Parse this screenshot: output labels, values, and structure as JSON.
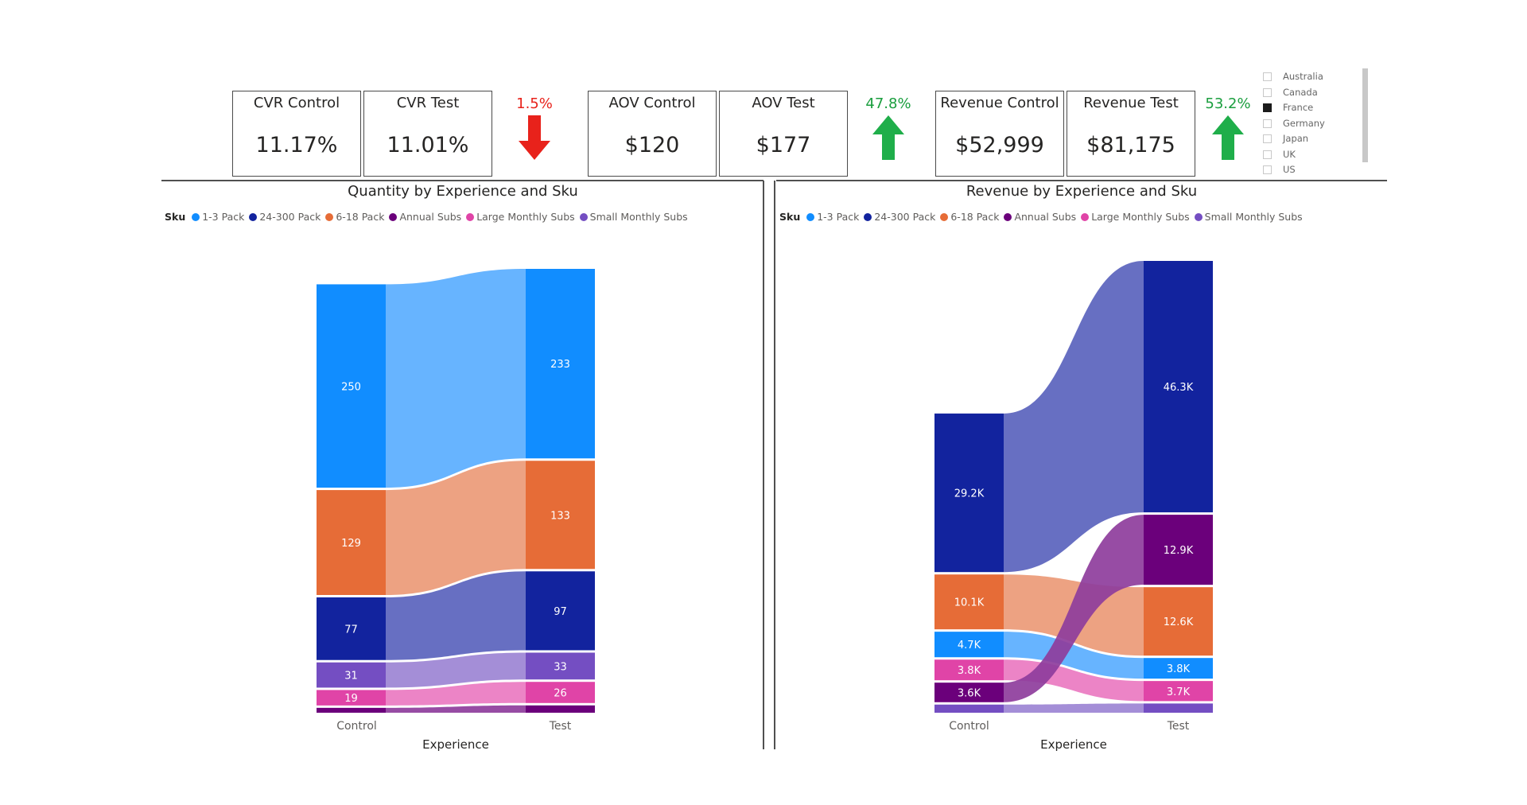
{
  "kpis": {
    "cvr_control": {
      "label": "CVR Control",
      "value": "11.17%"
    },
    "cvr_test": {
      "label": "CVR Test",
      "value": "11.01%"
    },
    "cvr_change": {
      "value": "1.5%",
      "direction": "down",
      "color": "#e8221b"
    },
    "aov_control": {
      "label": "AOV Control",
      "value": "$120"
    },
    "aov_test": {
      "label": "AOV Test",
      "value": "$177"
    },
    "aov_change": {
      "value": "47.8%",
      "direction": "up",
      "color": "#1a9e3e"
    },
    "revenue_control": {
      "label": "Revenue Control",
      "value": "$52,999"
    },
    "revenue_test": {
      "label": "Revenue Test",
      "value": "$81,175"
    },
    "revenue_change": {
      "value": "53.2%",
      "direction": "up",
      "color": "#1a9e3e"
    }
  },
  "slicer": {
    "options": [
      {
        "label": "Australia",
        "checked": false
      },
      {
        "label": "Canada",
        "checked": false
      },
      {
        "label": "France",
        "checked": true
      },
      {
        "label": "Germany",
        "checked": false
      },
      {
        "label": "Japan",
        "checked": false
      },
      {
        "label": "UK",
        "checked": false
      },
      {
        "label": "US",
        "checked": false
      }
    ]
  },
  "legend": {
    "header": "Sku",
    "items": [
      {
        "label": "1-3 Pack",
        "color": "#118dff"
      },
      {
        "label": "24-300 Pack",
        "color": "#12239e"
      },
      {
        "label": "6-18 Pack",
        "color": "#e66c37"
      },
      {
        "label": "Annual Subs",
        "color": "#6b007b"
      },
      {
        "label": "Large Monthly Subs",
        "color": "#e044a7"
      },
      {
        "label": "Small Monthly Subs",
        "color": "#744ec2"
      }
    ]
  },
  "chart_data": [
    {
      "type": "sankey",
      "title": "Quantity by Experience and Sku",
      "xlabel": "Experience",
      "categories": [
        "Control",
        "Test"
      ],
      "series": [
        {
          "name": "1-3 Pack",
          "values": [
            250,
            233
          ],
          "labels": [
            "250",
            "233"
          ]
        },
        {
          "name": "6-18 Pack",
          "values": [
            129,
            133
          ],
          "labels": [
            "129",
            "133"
          ]
        },
        {
          "name": "24-300 Pack",
          "values": [
            77,
            97
          ],
          "labels": [
            "77",
            "97"
          ]
        },
        {
          "name": "Small Monthly Subs",
          "values": [
            31,
            33
          ],
          "labels": [
            "31",
            "33"
          ]
        },
        {
          "name": "Large Monthly Subs",
          "values": [
            19,
            26
          ],
          "labels": [
            "19",
            "26"
          ]
        },
        {
          "name": "Annual Subs",
          "values": [
            6,
            9
          ],
          "labels": [
            "",
            ""
          ]
        }
      ]
    },
    {
      "type": "sankey",
      "title": "Revenue by Experience and Sku",
      "xlabel": "Experience",
      "categories": [
        "Control",
        "Test"
      ],
      "series": [
        {
          "name": "24-300 Pack",
          "values": [
            29200,
            46300
          ],
          "labels": [
            "29.2K",
            "46.3K"
          ]
        },
        {
          "name": "6-18 Pack",
          "values": [
            10100,
            12600
          ],
          "labels": [
            "10.1K",
            "12.6K"
          ]
        },
        {
          "name": "1-3 Pack",
          "values": [
            4700,
            3800
          ],
          "labels": [
            "4.7K",
            "3.8K"
          ]
        },
        {
          "name": "Large Monthly Subs",
          "values": [
            3800,
            3700
          ],
          "labels": [
            "3.8K",
            "3.7K"
          ]
        },
        {
          "name": "Annual Subs",
          "values": [
            3600,
            12900
          ],
          "labels": [
            "3.6K",
            "12.9K"
          ]
        },
        {
          "name": "Small Monthly Subs",
          "values": [
            1500,
            1700
          ],
          "labels": [
            "",
            ""
          ]
        }
      ]
    }
  ]
}
